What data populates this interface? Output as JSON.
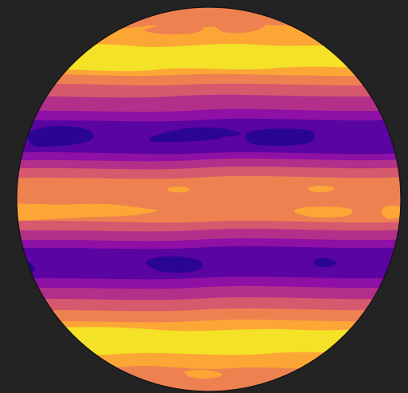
{
  "scene": {
    "background_color": "#232323",
    "outline_color": "#111111",
    "colormap": "plasma",
    "palette": {
      "deep_indigo": "#2a0593",
      "violet": "#5a04a2",
      "purple": "#8e10a4",
      "magenta": "#b3308a",
      "pink": "#d6596d",
      "salmon": "#ee8150",
      "orange": "#fca636",
      "yellow": "#f3e226"
    },
    "bands_top_to_bottom": [
      "orange",
      "salmon",
      "orange",
      "yellow",
      "orange",
      "salmon",
      "pink",
      "magenta",
      "purple",
      "violet",
      "deep_indigo",
      "violet",
      "purple",
      "magenta",
      "pink",
      "salmon",
      "orange",
      "salmon",
      "pink",
      "magenta",
      "purple",
      "violet",
      "deep_indigo",
      "violet",
      "purple",
      "magenta",
      "pink",
      "salmon",
      "orange",
      "yellow",
      "orange",
      "salmon"
    ]
  }
}
